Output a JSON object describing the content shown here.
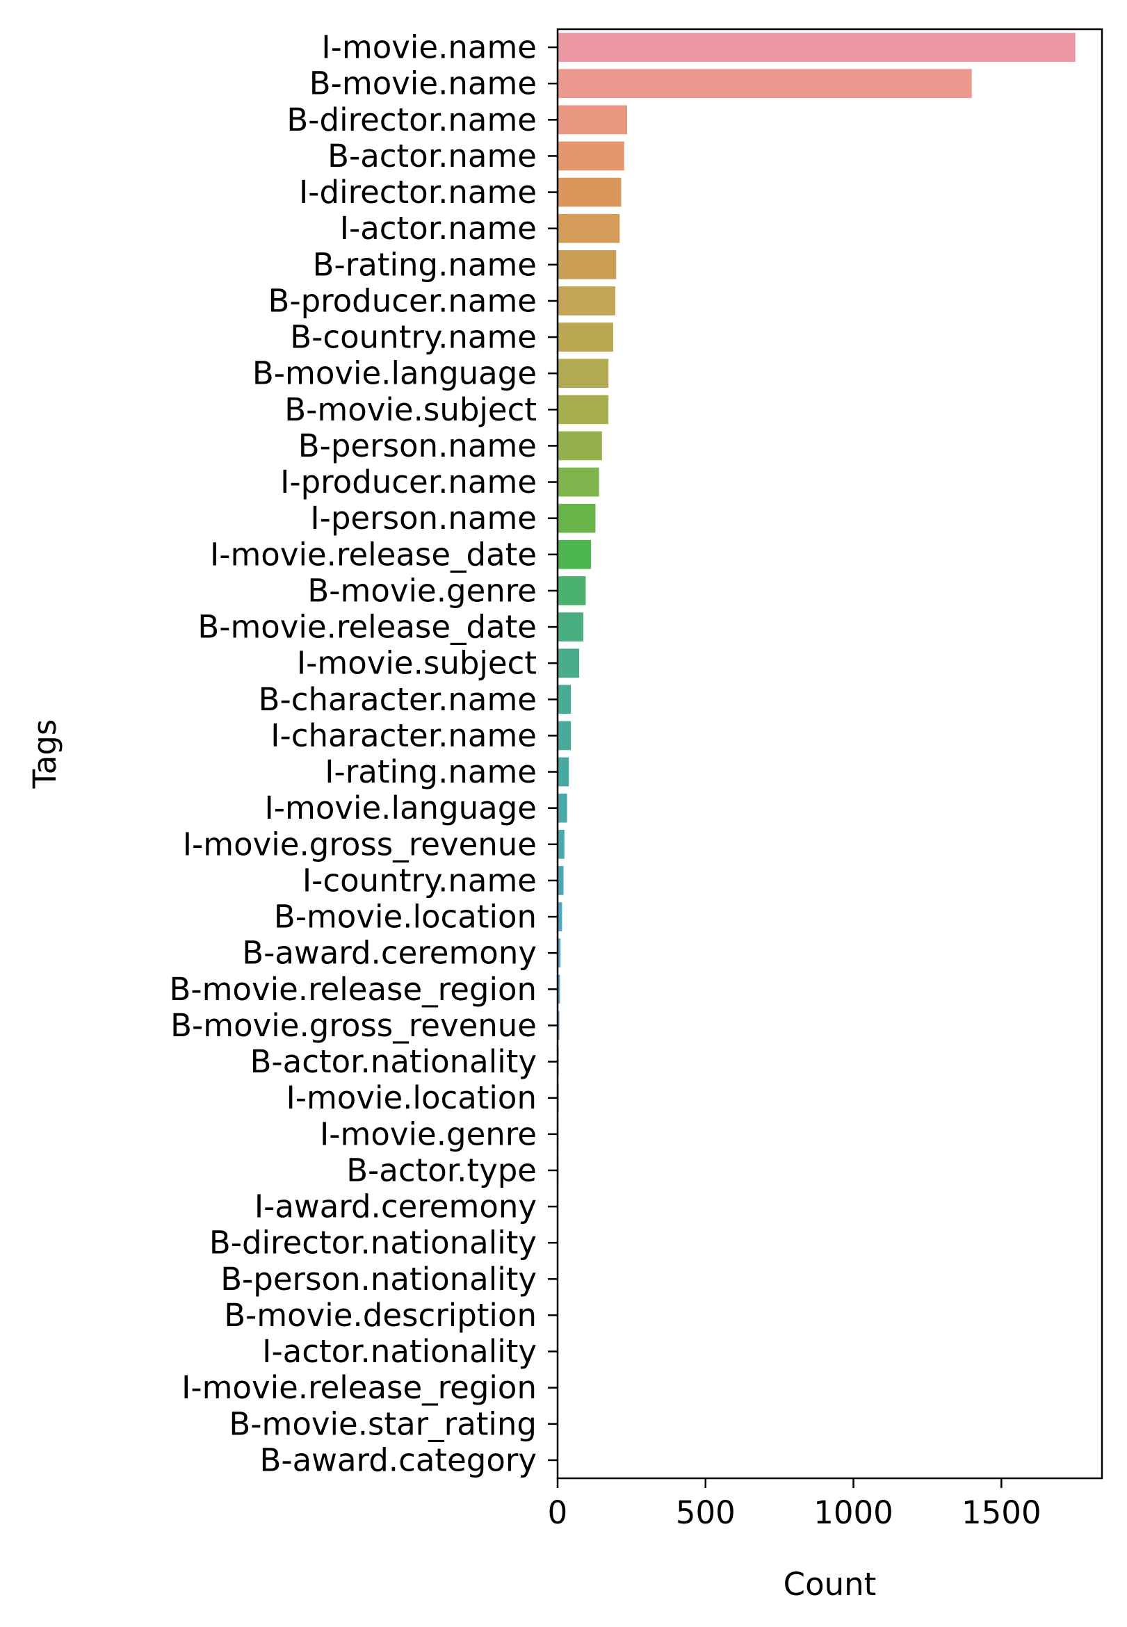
{
  "chart_data": {
    "type": "bar",
    "orientation": "horizontal",
    "title": "",
    "xlabel": "Count",
    "ylabel": "Tags",
    "xlim": [
      0,
      1840
    ],
    "xticks": [
      0,
      500,
      1000,
      1500
    ],
    "xtick_labels": [
      "0",
      "500",
      "1000",
      "1500"
    ],
    "grid": false,
    "legend": "none",
    "categories": [
      "I-movie.name",
      "B-movie.name",
      "B-director.name",
      "B-actor.name",
      "I-director.name",
      "I-actor.name",
      "B-rating.name",
      "B-producer.name",
      "B-country.name",
      "B-movie.language",
      "B-movie.subject",
      "B-person.name",
      "I-producer.name",
      "I-person.name",
      "I-movie.release_date",
      "B-movie.genre",
      "B-movie.release_date",
      "I-movie.subject",
      "B-character.name",
      "I-character.name",
      "I-rating.name",
      "I-movie.language",
      "I-movie.gross_revenue",
      "I-country.name",
      "B-movie.location",
      "B-award.ceremony",
      "B-movie.release_region",
      "B-movie.gross_revenue",
      "B-actor.nationality",
      "I-movie.location",
      "I-movie.genre",
      "B-actor.type",
      "I-award.ceremony",
      "B-director.nationality",
      "B-person.nationality",
      "B-movie.description",
      "I-actor.nationality",
      "I-movie.release_region",
      "B-movie.star_rating",
      "B-award.category"
    ],
    "values": [
      1750,
      1400,
      235,
      225,
      215,
      210,
      198,
      195,
      188,
      172,
      172,
      150,
      140,
      128,
      113,
      95,
      87,
      73,
      45,
      45,
      38,
      32,
      23,
      20,
      15,
      10,
      8,
      6,
      4,
      4,
      3,
      3,
      2,
      2,
      2,
      2,
      1,
      1,
      1,
      1
    ],
    "colors": [
      "#ea96a3",
      "#eb998f",
      "#e8967f",
      "#e5956a",
      "#db975a",
      "#d39c58",
      "#cc9f56",
      "#c4a455",
      "#bca753",
      "#b2aa52",
      "#a6ae4f",
      "#94b04d",
      "#7fb44c",
      "#68b64a",
      "#4db54d",
      "#4bb16f",
      "#4aaf80",
      "#49ad8b",
      "#48ab93",
      "#47aa9a",
      "#47aaa0",
      "#47aaa8",
      "#48aab0",
      "#49a9b8",
      "#4aa8c2",
      "#4ea7cc",
      "#57a4d6",
      "#64a0dc",
      "#789be2",
      "#8c96e6",
      "#9f90e8",
      "#b18bea",
      "#c186e9",
      "#d082e4",
      "#dc7ede",
      "#e57cd4",
      "#ea7dc8",
      "#ec80bb",
      "#ec84ad",
      "#ec88a0"
    ]
  }
}
